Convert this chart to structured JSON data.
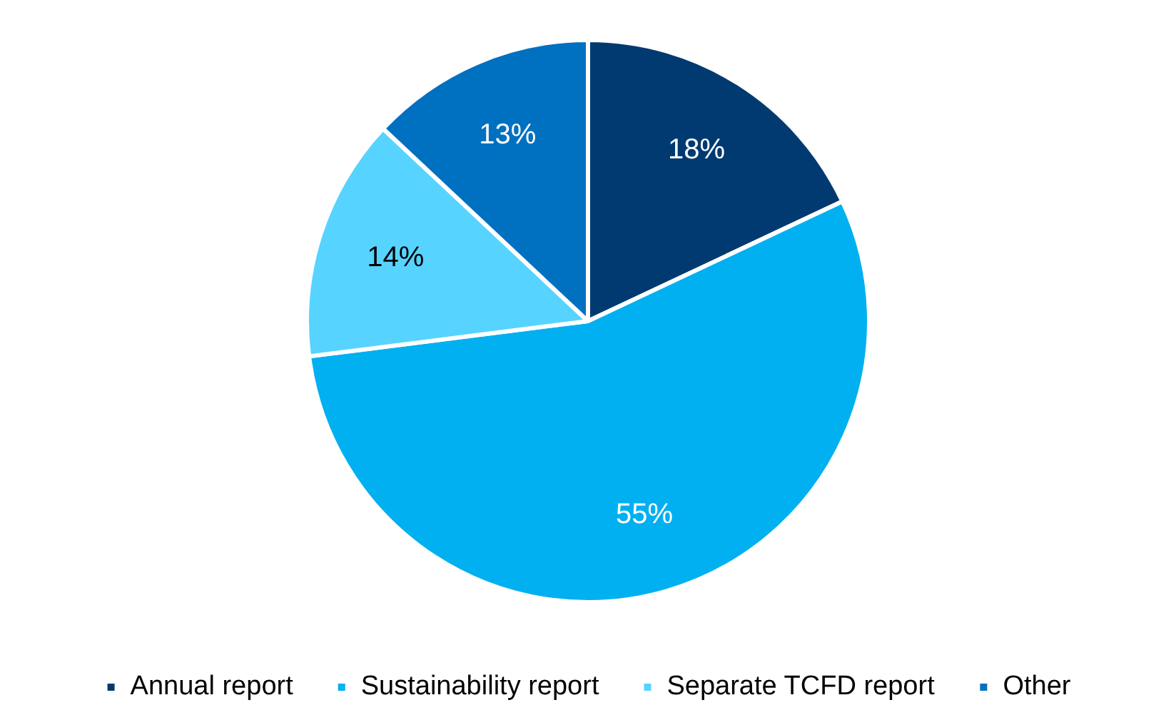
{
  "chart_data": {
    "type": "pie",
    "categories": [
      "Annual report",
      "Sustainability report",
      "Separate TCFD report",
      "Other"
    ],
    "values": [
      18,
      55,
      14,
      13
    ],
    "value_labels": [
      "18%",
      "55%",
      "14%",
      "13%"
    ],
    "colors": [
      "#003a70",
      "#00b0f0",
      "#57d3ff",
      "#0070c0"
    ],
    "legend": "bottom"
  }
}
